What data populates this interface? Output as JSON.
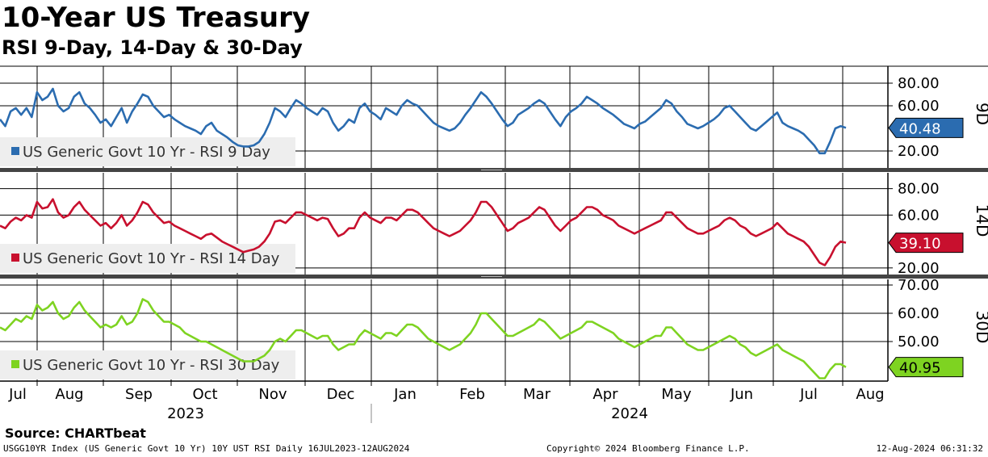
{
  "title": "10-Year US Treasury",
  "subtitle": "RSI 9-Day, 14-Day & 30-Day",
  "source": "Source: CHARTbeat",
  "footer": {
    "left": "USGG10YR Index (US Generic Govt 10 Yr) 10Y UST RSI  Daily 16JUL2023-12AUG2024",
    "middle": "Copyright© 2024 Bloomberg Finance L.P.",
    "right": "12-Aug-2024 06:31:32"
  },
  "chart_data": {
    "type": "line",
    "x_axis": {
      "months": [
        "Jul",
        "Aug",
        "Sep",
        "Oct",
        "Nov",
        "Dec",
        "Jan",
        "Feb",
        "Mar",
        "Apr",
        "May",
        "Jun",
        "Jul",
        "Aug"
      ],
      "years": [
        "2023",
        "2024"
      ]
    },
    "panels": [
      {
        "id": "9d",
        "panel_label": "9D",
        "legend": "US Generic Govt 10 Yr - RSI 9 Day",
        "color": "#2b6cb0",
        "last_value": "40.48",
        "ylim": [
          5,
          95
        ],
        "yticks": [
          {
            "label": "80.00",
            "value": 80
          },
          {
            "label": "60.00",
            "value": 60
          },
          {
            "label": "20.00",
            "value": 20
          }
        ],
        "values": [
          48,
          42,
          55,
          58,
          52,
          58,
          50,
          72,
          65,
          68,
          75,
          60,
          55,
          58,
          68,
          72,
          62,
          58,
          52,
          45,
          48,
          42,
          50,
          58,
          45,
          55,
          62,
          70,
          68,
          60,
          55,
          50,
          52,
          48,
          45,
          42,
          40,
          38,
          35,
          42,
          45,
          38,
          35,
          32,
          28,
          25,
          24,
          24,
          25,
          28,
          35,
          45,
          58,
          55,
          50,
          58,
          65,
          62,
          58,
          55,
          52,
          58,
          55,
          45,
          38,
          42,
          48,
          45,
          58,
          62,
          55,
          52,
          48,
          58,
          55,
          52,
          60,
          65,
          62,
          60,
          55,
          50,
          45,
          42,
          40,
          38,
          40,
          45,
          52,
          58,
          65,
          72,
          68,
          62,
          55,
          48,
          42,
          45,
          52,
          55,
          58,
          62,
          65,
          62,
          55,
          48,
          42,
          50,
          55,
          58,
          62,
          68,
          65,
          62,
          58,
          55,
          52,
          48,
          44,
          42,
          40,
          44,
          46,
          50,
          54,
          58,
          65,
          62,
          55,
          50,
          44,
          42,
          40,
          42,
          45,
          48,
          52,
          58,
          60,
          55,
          50,
          45,
          40,
          38,
          42,
          46,
          50,
          54,
          45,
          42,
          40,
          38,
          35,
          30,
          25,
          18,
          18,
          28,
          40,
          42,
          40.48
        ]
      },
      {
        "id": "14d",
        "panel_label": "14D",
        "legend": "US Generic Govt 10 Yr - RSI 14 Day",
        "color": "#c8102e",
        "last_value": "39.10",
        "ylim": [
          15,
          92
        ],
        "yticks": [
          {
            "label": "80.00",
            "value": 80
          },
          {
            "label": "60.00",
            "value": 60
          },
          {
            "label": "20.00",
            "value": 20
          }
        ],
        "values": [
          52,
          50,
          55,
          58,
          56,
          60,
          58,
          70,
          65,
          66,
          72,
          62,
          58,
          60,
          66,
          70,
          64,
          60,
          56,
          52,
          54,
          50,
          54,
          60,
          52,
          56,
          62,
          70,
          68,
          62,
          58,
          54,
          55,
          52,
          50,
          48,
          46,
          44,
          42,
          45,
          46,
          43,
          40,
          38,
          36,
          34,
          32,
          33,
          34,
          36,
          40,
          46,
          55,
          56,
          54,
          58,
          62,
          62,
          60,
          58,
          56,
          58,
          57,
          50,
          44,
          46,
          50,
          50,
          58,
          62,
          58,
          56,
          54,
          58,
          58,
          56,
          60,
          64,
          64,
          62,
          58,
          54,
          50,
          48,
          46,
          44,
          46,
          48,
          52,
          56,
          62,
          70,
          70,
          66,
          60,
          54,
          48,
          50,
          54,
          56,
          58,
          62,
          66,
          64,
          58,
          52,
          48,
          52,
          56,
          58,
          62,
          66,
          66,
          64,
          60,
          58,
          56,
          52,
          50,
          48,
          46,
          48,
          50,
          52,
          54,
          56,
          62,
          62,
          58,
          54,
          50,
          48,
          46,
          46,
          48,
          50,
          52,
          56,
          58,
          56,
          52,
          50,
          46,
          44,
          46,
          48,
          50,
          54,
          50,
          46,
          44,
          42,
          40,
          36,
          30,
          24,
          22,
          28,
          36,
          40,
          39.1
        ]
      },
      {
        "id": "30d",
        "panel_label": "30D",
        "legend": "US Generic Govt 10 Yr - RSI 30 Day",
        "color": "#7ed321",
        "last_value": "40.95",
        "ylim": [
          36,
          72
        ],
        "yticks": [
          {
            "label": "70.00",
            "value": 70
          },
          {
            "label": "60.00",
            "value": 60
          },
          {
            "label": "50.00",
            "value": 50
          }
        ],
        "values": [
          55,
          54,
          56,
          58,
          57,
          59,
          58,
          63,
          61,
          62,
          64,
          60,
          58,
          59,
          62,
          64,
          61,
          59,
          57,
          55,
          56,
          55,
          56,
          59,
          56,
          57,
          60,
          65,
          64,
          61,
          59,
          57,
          57,
          56,
          55,
          53,
          52,
          51,
          50,
          50,
          49,
          48,
          47,
          46,
          45,
          44,
          43,
          43,
          43,
          44,
          45,
          47,
          50,
          51,
          50,
          52,
          54,
          54,
          53,
          52,
          51,
          52,
          52,
          49,
          47,
          48,
          49,
          49,
          52,
          54,
          53,
          52,
          51,
          53,
          53,
          52,
          54,
          56,
          56,
          55,
          53,
          51,
          50,
          49,
          48,
          47,
          48,
          49,
          51,
          53,
          56,
          60,
          60,
          58,
          56,
          54,
          52,
          52,
          53,
          54,
          55,
          56,
          58,
          57,
          55,
          53,
          51,
          52,
          53,
          54,
          55,
          57,
          57,
          56,
          55,
          54,
          53,
          51,
          50,
          49,
          48,
          49,
          50,
          51,
          52,
          52,
          55,
          55,
          53,
          51,
          49,
          48,
          47,
          47,
          48,
          49,
          50,
          51,
          52,
          51,
          49,
          48,
          46,
          45,
          46,
          47,
          48,
          49,
          47,
          46,
          45,
          44,
          43,
          41,
          39,
          37,
          37,
          40,
          42,
          42,
          40.95
        ]
      }
    ]
  }
}
